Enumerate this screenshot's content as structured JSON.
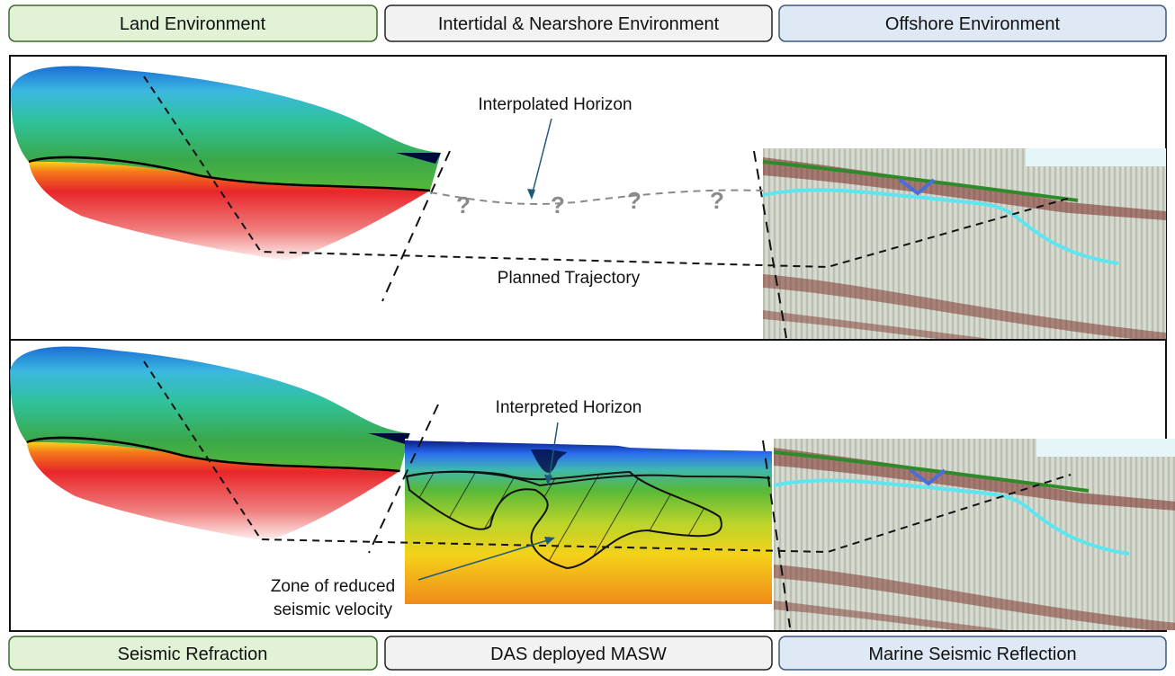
{
  "header": {
    "labels": [
      "Land Environment",
      "Intertidal & Nearshore Environment",
      "Offshore Environment"
    ]
  },
  "footer": {
    "labels": [
      "Seismic Refraction",
      "DAS deployed MASW",
      "Marine Seismic Reflection"
    ]
  },
  "top_panel": {
    "interpolated_horizon": "Interpolated Horizon",
    "planned_trajectory": "Planned Trajectory",
    "question_marks": [
      "?",
      "?",
      "?",
      "?"
    ]
  },
  "bottom_panel": {
    "interpreted_horizon": "Interpreted Horizon",
    "zone_label": [
      "Zone of reduced",
      "seismic velocity"
    ]
  }
}
